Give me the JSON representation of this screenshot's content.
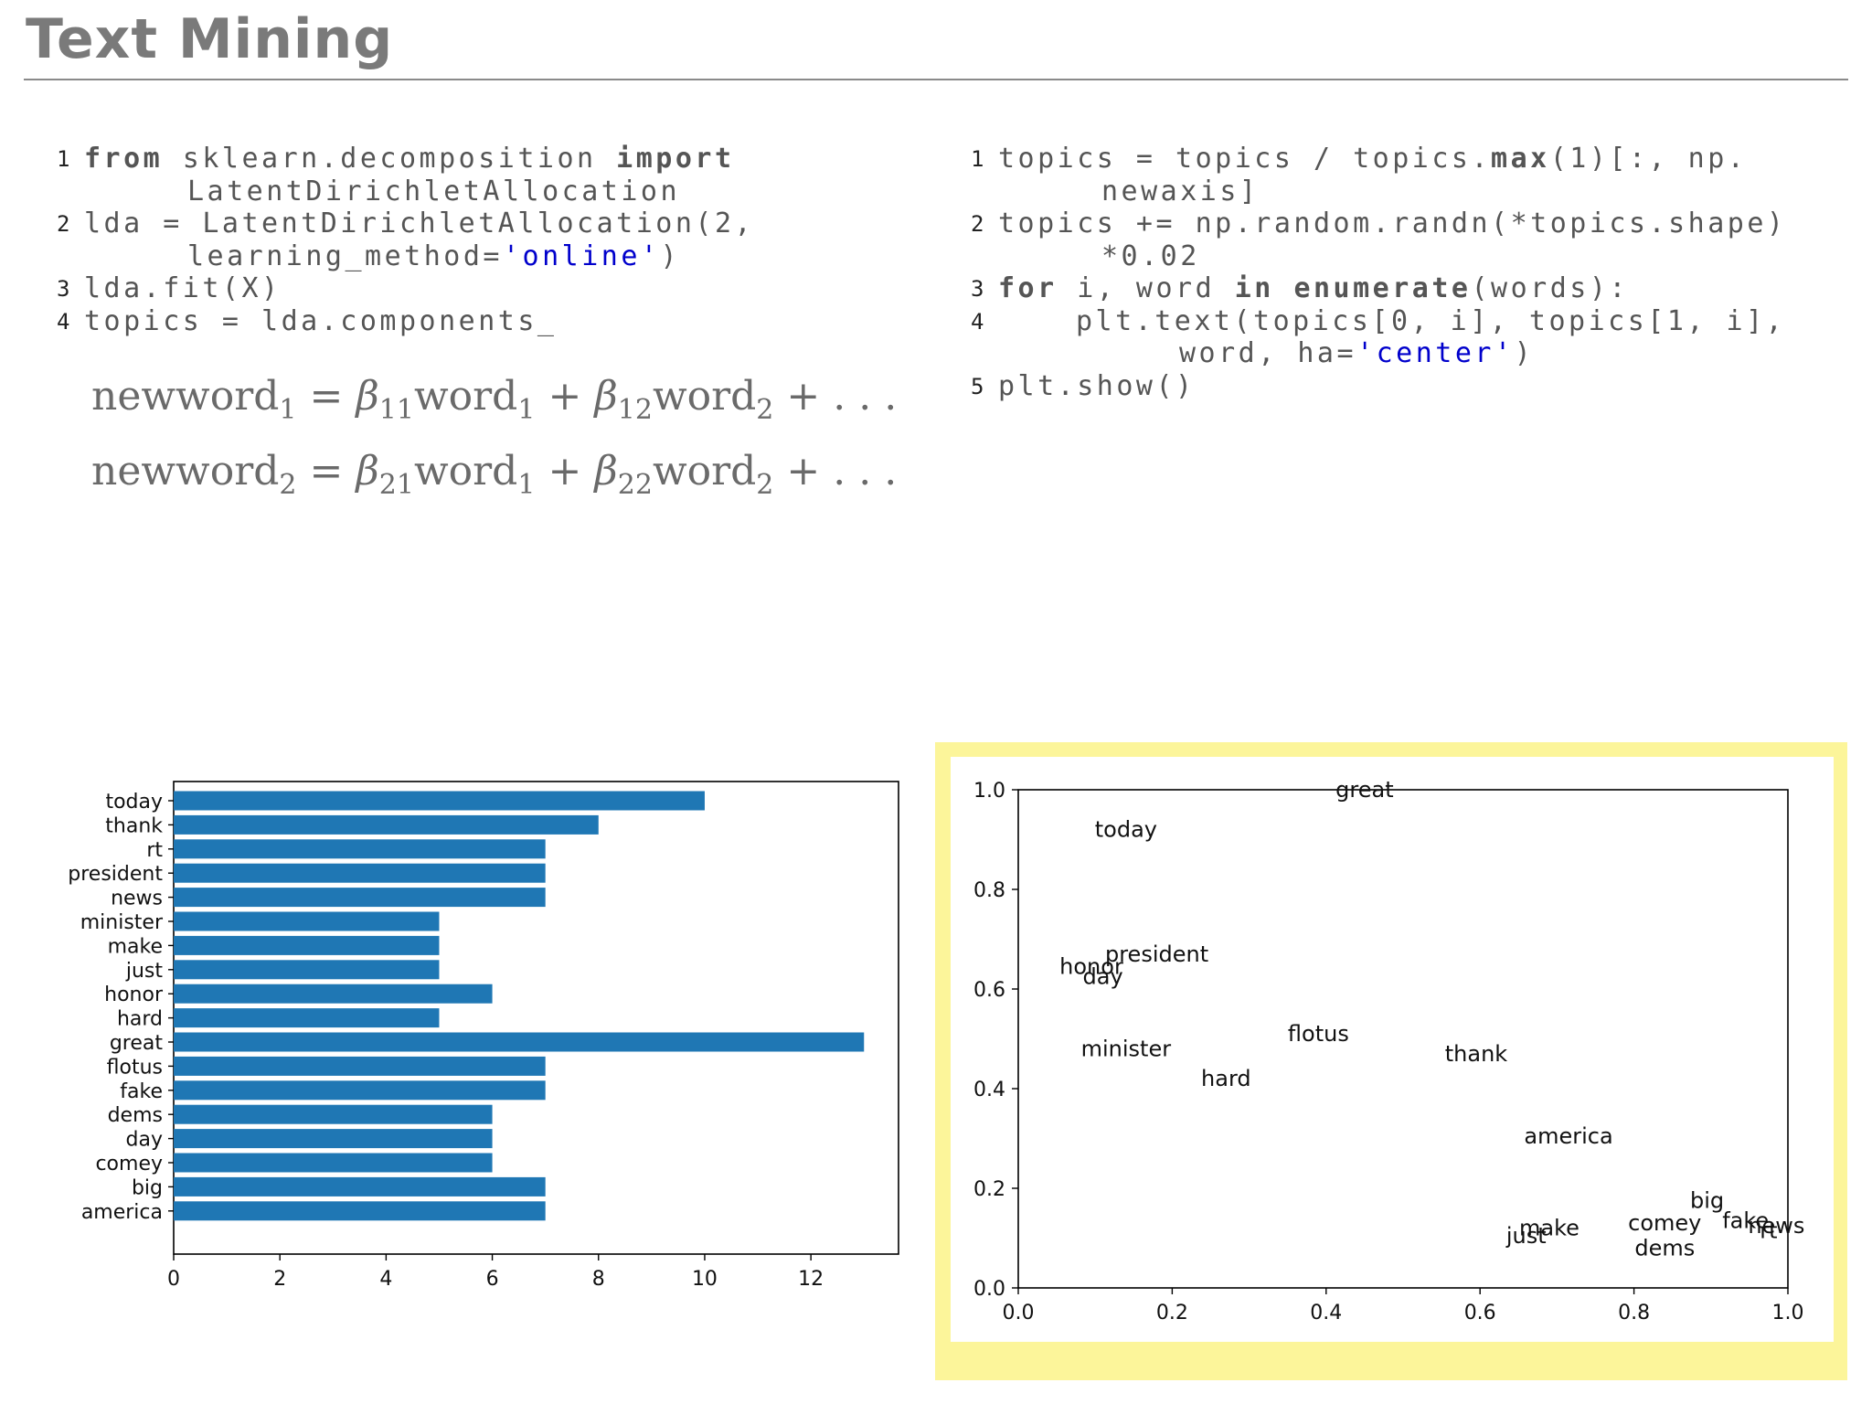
{
  "slide": {
    "title": "Text Mining"
  },
  "code_left": [
    {
      "num": "1",
      "segments": [
        {
          "t": "from",
          "k": "kw"
        },
        {
          "t": " sklearn.decomposition ",
          "k": ""
        },
        {
          "t": "import",
          "k": "kw"
        }
      ]
    },
    {
      "num": "",
      "segments": [
        {
          "t": "LatentDirichletAllocation",
          "k": ""
        }
      ]
    },
    {
      "num": "2",
      "segments": [
        {
          "t": "lda = LatentDirichletAllocation(2,",
          "k": ""
        }
      ]
    },
    {
      "num": "",
      "segments": [
        {
          "t": "learning_method=",
          "k": ""
        },
        {
          "t": "'online'",
          "k": "str"
        },
        {
          "t": ")",
          "k": ""
        }
      ]
    },
    {
      "num": "3",
      "segments": [
        {
          "t": "lda.fit(X)",
          "k": ""
        }
      ]
    },
    {
      "num": "4",
      "segments": [
        {
          "t": "topics = lda.components_",
          "k": ""
        }
      ]
    }
  ],
  "code_right": [
    {
      "num": "1",
      "segments": [
        {
          "t": "topics = topics / topics.",
          "k": ""
        },
        {
          "t": "max",
          "k": "kw"
        },
        {
          "t": "(1)[:, np.",
          "k": ""
        }
      ]
    },
    {
      "num": "",
      "segments": [
        {
          "t": "newaxis]",
          "k": ""
        }
      ]
    },
    {
      "num": "2",
      "segments": [
        {
          "t": "topics += np.random.randn(*topics.shape)",
          "k": ""
        }
      ]
    },
    {
      "num": "",
      "segments": [
        {
          "t": "*0.02",
          "k": ""
        }
      ]
    },
    {
      "num": "3",
      "segments": [
        {
          "t": "for",
          "k": "kw"
        },
        {
          "t": " i, word ",
          "k": ""
        },
        {
          "t": "in",
          "k": "kw"
        },
        {
          "t": " ",
          "k": ""
        },
        {
          "t": "enumerate",
          "k": "kw"
        },
        {
          "t": "(words):",
          "k": ""
        }
      ]
    },
    {
      "num": "4",
      "segments": [
        {
          "t": "plt.text(topics[0, i], topics[1, i],",
          "k": ""
        }
      ]
    },
    {
      "num": "",
      "segments": [
        {
          "t": "word, ha=",
          "k": ""
        },
        {
          "t": "'center'",
          "k": "str"
        },
        {
          "t": ")",
          "k": ""
        }
      ]
    },
    {
      "num": "5",
      "segments": [
        {
          "t": "plt.show()",
          "k": ""
        }
      ]
    }
  ],
  "equations": [
    {
      "lhs": "newword",
      "lhs_sub": "1",
      "eq": "=",
      "b1": "β",
      "b1_sub": "11",
      "w1": "word",
      "w1_sub": "1",
      "plus": "+",
      "b2": "β",
      "b2_sub": "12",
      "w2": "word",
      "w2_sub": "2",
      "tail": "+ . . ."
    },
    {
      "lhs": "newword",
      "lhs_sub": "2",
      "eq": "=",
      "b1": "β",
      "b1_sub": "21",
      "w1": "word",
      "w1_sub": "1",
      "plus": "+",
      "b2": "β",
      "b2_sub": "22",
      "w2": "word",
      "w2_sub": "2",
      "tail": "+ . . ."
    }
  ],
  "chart_data": [
    {
      "type": "bar",
      "orientation": "horizontal",
      "categories": [
        "today",
        "thank",
        "rt",
        "president",
        "news",
        "minister",
        "make",
        "just",
        "honor",
        "hard",
        "great",
        "flotus",
        "fake",
        "dems",
        "day",
        "comey",
        "big",
        "america"
      ],
      "values": [
        10,
        8,
        7,
        7,
        7,
        5,
        5,
        5,
        6,
        5,
        13,
        7,
        7,
        6,
        6,
        6,
        7,
        7
      ],
      "xticks": [
        "0",
        "2",
        "4",
        "6",
        "8",
        "10",
        "12"
      ],
      "xlim": [
        0,
        13.65
      ],
      "color": "#1f77b4",
      "grid": false
    },
    {
      "type": "scatter",
      "markers": "text labels",
      "points": [
        {
          "label": "great",
          "x": 0.45,
          "y": 1.0
        },
        {
          "label": "today",
          "x": 0.14,
          "y": 0.92
        },
        {
          "label": "president",
          "x": 0.18,
          "y": 0.67
        },
        {
          "label": "honor",
          "x": 0.095,
          "y": 0.645
        },
        {
          "label": "day",
          "x": 0.11,
          "y": 0.625
        },
        {
          "label": "flotus",
          "x": 0.39,
          "y": 0.51
        },
        {
          "label": "minister",
          "x": 0.14,
          "y": 0.48
        },
        {
          "label": "thank",
          "x": 0.595,
          "y": 0.47
        },
        {
          "label": "hard",
          "x": 0.27,
          "y": 0.42
        },
        {
          "label": "america",
          "x": 0.715,
          "y": 0.305
        },
        {
          "label": "big",
          "x": 0.895,
          "y": 0.175
        },
        {
          "label": "fake",
          "x": 0.945,
          "y": 0.135
        },
        {
          "label": "news",
          "x": 0.985,
          "y": 0.125
        },
        {
          "label": "comey",
          "x": 0.84,
          "y": 0.13
        },
        {
          "label": "rt",
          "x": 0.975,
          "y": 0.115
        },
        {
          "label": "make",
          "x": 0.69,
          "y": 0.12
        },
        {
          "label": "just",
          "x": 0.66,
          "y": 0.105
        },
        {
          "label": "dems",
          "x": 0.84,
          "y": 0.08
        }
      ],
      "xlim": [
        0.0,
        1.0
      ],
      "ylim": [
        0.0,
        1.0
      ],
      "xticks": [
        "0.0",
        "0.2",
        "0.4",
        "0.6",
        "0.8",
        "1.0"
      ],
      "yticks": [
        "0.0",
        "0.2",
        "0.4",
        "0.6",
        "0.8",
        "1.0"
      ],
      "highlight_color": "#fcf59a",
      "grid": false
    }
  ]
}
